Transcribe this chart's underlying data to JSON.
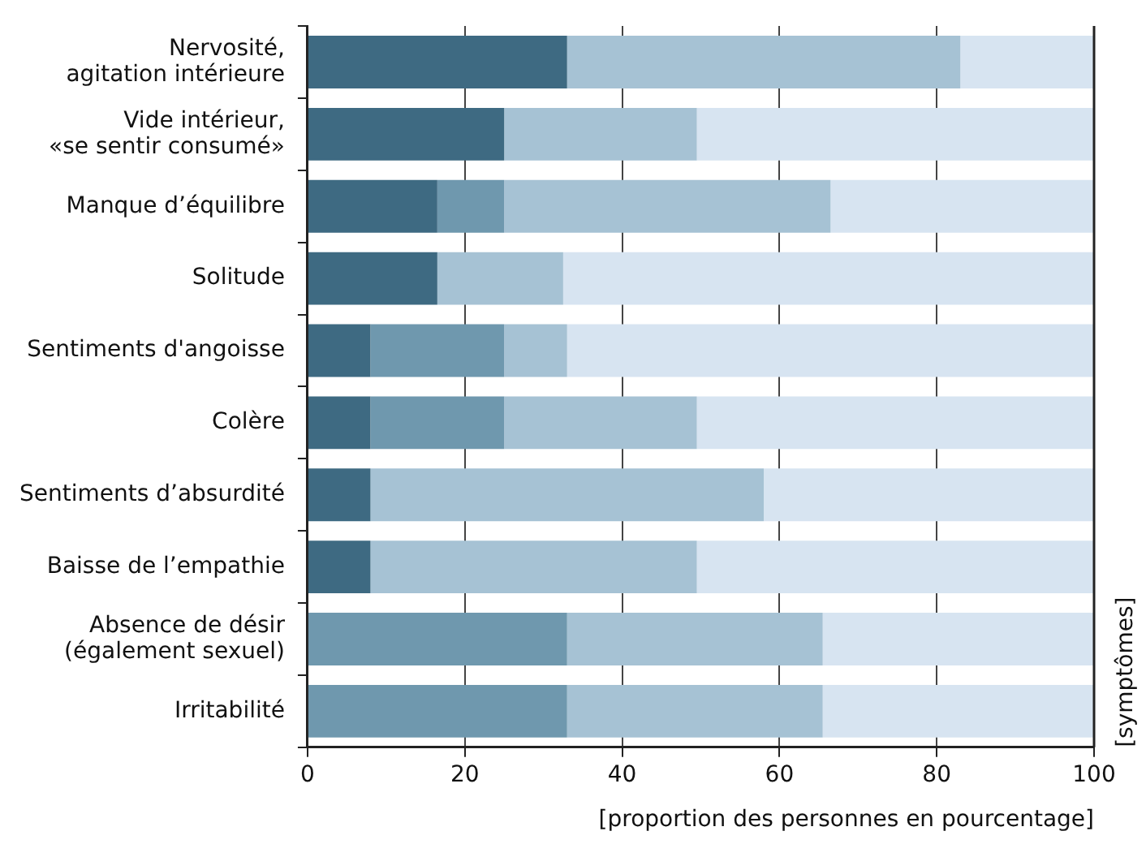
{
  "chart_data": {
    "type": "bar",
    "orientation": "horizontal",
    "stacked": true,
    "categories": [
      "Nervosité,\nagitation intérieure",
      "Vide intérieur,\n«se sentir consumé»",
      "Manque d’équilibre",
      "Solitude",
      "Sentiments d'angoisse",
      "Colère",
      "Sentiments d’absurdité",
      "Baisse de l’empathie",
      "Absence de désir\n(également sexuel)",
      "Irritabilité"
    ],
    "series": [
      {
        "color": "#3e6a82",
        "values": [
          33,
          25,
          16.5,
          16.5,
          8,
          8,
          8,
          8,
          0,
          0
        ]
      },
      {
        "color": "#6f98ae",
        "values": [
          0,
          0,
          8.5,
          0,
          17,
          17,
          0,
          0,
          33,
          33
        ]
      },
      {
        "color": "#a6c2d4",
        "values": [
          50,
          24.5,
          41.5,
          16,
          8,
          24.5,
          50,
          41.5,
          32.5,
          32.5
        ]
      },
      {
        "color": "#d7e4f1",
        "values": [
          17,
          50.5,
          33.5,
          67.5,
          67,
          50.5,
          42,
          50.5,
          34.5,
          34.5
        ]
      }
    ],
    "xlim": [
      0,
      100
    ],
    "xticks": [
      0,
      20,
      40,
      60,
      80,
      100
    ],
    "grid": "x",
    "xlabel": "[proportion des personnes en pourcentage]",
    "ylabel": "[symptômes]"
  }
}
